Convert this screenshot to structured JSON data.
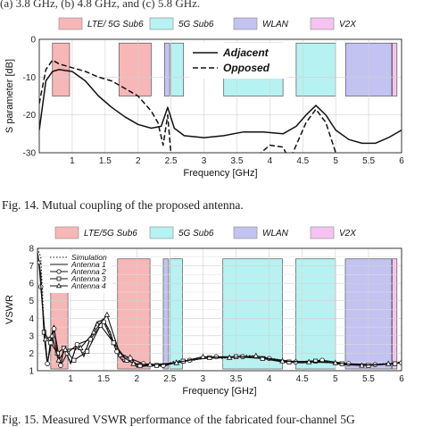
{
  "top_caption": "(a) 3.8 GHz, (b) 4.8 GHz, and (c) 5.8 GHz.",
  "bands": [
    {
      "label": "LTE/ 5G Sub6",
      "color": "#f7b7b7",
      "x_start": 0.7,
      "x_end": 0.96
    },
    {
      "label": "LTE/ 5G Sub6",
      "color": "#f7b7b7",
      "x_start": 1.71,
      "x_end": 2.2
    },
    {
      "label": "5G Sub6",
      "color": "#b7f2f2",
      "x_start": 2.5,
      "x_end": 2.69
    },
    {
      "label": "WLAN",
      "color": "#c3c3f2",
      "x_start": 2.4,
      "x_end": 2.48
    },
    {
      "label": "5G Sub6",
      "color": "#b7f2f2",
      "x_start": 3.3,
      "x_end": 4.2
    },
    {
      "label": "5G Sub6",
      "color": "#b7f2f2",
      "x_start": 4.4,
      "x_end": 5.0
    },
    {
      "label": "WLAN",
      "color": "#c3c3f2",
      "x_start": 5.15,
      "x_end": 5.85
    },
    {
      "label": "V2X",
      "color": "#f5c3f2",
      "x_start": 5.86,
      "x_end": 5.93
    }
  ],
  "legend_band_labels": [
    "LTE/ 5G Sub6",
    "5G Sub6",
    "WLAN",
    "V2X"
  ],
  "legend_band_labels_fig15": [
    "LTE/5G Sub6",
    "5G Sub6",
    "WLAN",
    "V2X"
  ],
  "legend_band_colors": [
    "#f7b7b7",
    "#b7f2f2",
    "#c3c3f2",
    "#f5c3f2"
  ],
  "fig14": {
    "caption": "Fig. 14.   Mutual coupling of the proposed antenna.",
    "chart_data": {
      "type": "line",
      "xlabel": "Frequency [GHz]",
      "ylabel": "S parameter [dB]",
      "xlim": [
        0.5,
        6
      ],
      "ylim": [
        -30,
        0
      ],
      "xticks": [
        "1",
        "1.5",
        "2",
        "2.5",
        "3",
        "3.5",
        "4",
        "4.5",
        "5",
        "5.5",
        "6"
      ],
      "yticks": [
        "0",
        "-10",
        "-20",
        "-30"
      ],
      "grid": true,
      "legend_position": "top-center",
      "series": [
        {
          "name": "Adjacent",
          "style": "solid",
          "x": [
            0.5,
            0.6,
            0.7,
            0.8,
            1.0,
            1.2,
            1.4,
            1.6,
            1.8,
            2.0,
            2.2,
            2.35,
            2.45,
            2.55,
            2.7,
            3.0,
            3.3,
            3.6,
            3.9,
            4.2,
            4.4,
            4.55,
            4.7,
            4.85,
            5.0,
            5.2,
            5.4,
            5.6,
            5.8,
            6.0
          ],
          "y": [
            -24,
            -11,
            -8.5,
            -8.0,
            -8.5,
            -11,
            -15,
            -18,
            -20.5,
            -22.5,
            -23.5,
            -23,
            -18,
            -23.5,
            -25.5,
            -26,
            -25.5,
            -24.5,
            -24.5,
            -25,
            -23,
            -20,
            -17.5,
            -20,
            -24,
            -26.5,
            -27.5,
            -27.5,
            -26,
            -24
          ]
        },
        {
          "name": "Opposed",
          "style": "dashed",
          "x": [
            0.5,
            0.6,
            0.7,
            0.8,
            1.0,
            1.2,
            1.4,
            1.6,
            1.8,
            2.0,
            2.2,
            2.3,
            2.38,
            2.45,
            2.5,
            2.55,
            3.8,
            4.0,
            4.2,
            4.3,
            4.4,
            4.55,
            4.7,
            4.85,
            5.0
          ],
          "y": [
            -17,
            -8,
            -5.5,
            -6.5,
            -7.5,
            -8.5,
            -10,
            -11,
            -13,
            -15,
            -19,
            -22,
            -28,
            -20,
            -30.5,
            -31,
            -31,
            -28,
            -28.5,
            -32,
            -28,
            -22,
            -18.5,
            -22,
            -30
          ]
        }
      ]
    }
  },
  "fig15": {
    "caption": "Fig. 15.   Measured VSWR performance of the fabricated four-channel 5G",
    "chart_data": {
      "type": "line",
      "xlabel": "Frequency [GHz]",
      "ylabel": "VSWR",
      "xlim": [
        0.5,
        6
      ],
      "ylim": [
        1,
        8
      ],
      "xticks": [
        "1",
        "1.5",
        "2",
        "2.5",
        "3",
        "3.5",
        "4",
        "4.5",
        "5",
        "5.5",
        "6"
      ],
      "yticks": [
        "8",
        "7",
        "6",
        "5",
        "4",
        "3",
        "2",
        "1"
      ],
      "grid": true,
      "legend_position": "top-left",
      "series": [
        {
          "name": "Simulation",
          "style": "dotted",
          "marker": "none",
          "x": [
            0.5,
            0.55,
            0.6,
            0.65,
            0.7,
            0.75,
            0.8,
            0.85,
            0.9,
            1.0,
            1.1,
            1.2,
            1.3,
            1.4,
            1.5,
            1.6,
            1.7,
            1.8,
            1.9,
            2.0,
            2.2,
            2.4,
            2.6,
            2.8,
            3.0,
            3.3,
            3.6,
            3.9,
            4.2,
            4.5,
            4.8,
            5.1,
            5.4,
            5.7,
            6.0
          ],
          "y": [
            8,
            7.5,
            3.5,
            1.5,
            2.5,
            3.5,
            2,
            1.4,
            2.2,
            1.5,
            2.4,
            2.0,
            2.8,
            3.7,
            4.0,
            3.0,
            2.2,
            1.6,
            1.9,
            1.3,
            1.4,
            1.3,
            1.6,
            1.5,
            1.8,
            1.7,
            1.9,
            1.8,
            1.6,
            1.5,
            1.6,
            1.4,
            1.3,
            1.4,
            1.5
          ]
        },
        {
          "name": "Antenna 1",
          "style": "solid",
          "marker": "none",
          "x": [
            0.5,
            0.55,
            0.6,
            0.65,
            0.7,
            0.75,
            0.8,
            0.85,
            0.9,
            1.0,
            1.1,
            1.2,
            1.3,
            1.4,
            1.5,
            1.6,
            1.7,
            1.8,
            1.9,
            2.0,
            2.2,
            2.4,
            2.6,
            2.8,
            3.0,
            3.3,
            3.6,
            3.9,
            4.2,
            4.5,
            4.8,
            5.1,
            5.4,
            5.7,
            6.0
          ],
          "y": [
            7.8,
            6.5,
            3.0,
            1.3,
            2.8,
            3.6,
            1.8,
            1.3,
            2.4,
            1.4,
            2.6,
            1.8,
            2.9,
            3.8,
            3.9,
            3.2,
            2.0,
            1.5,
            1.8,
            1.2,
            1.3,
            1.25,
            1.5,
            1.6,
            1.7,
            1.75,
            1.8,
            1.7,
            1.5,
            1.45,
            1.55,
            1.35,
            1.3,
            1.35,
            1.45
          ]
        },
        {
          "name": "Antenna 2",
          "style": "solid",
          "marker": "circle",
          "x": [
            0.55,
            0.65,
            0.75,
            0.85,
            0.95,
            1.1,
            1.3,
            1.5,
            1.7,
            1.9,
            2.1,
            2.4,
            2.8,
            3.2,
            3.6,
            4.0,
            4.4,
            4.8,
            5.2,
            5.6,
            6.0
          ],
          "y": [
            5.8,
            1.4,
            3.4,
            1.3,
            2.0,
            2.5,
            2.8,
            3.8,
            2.1,
            1.7,
            1.4,
            1.3,
            1.6,
            1.8,
            1.8,
            1.7,
            1.5,
            1.6,
            1.4,
            1.35,
            1.45
          ]
        },
        {
          "name": "Antenna 3",
          "style": "solid",
          "marker": "square",
          "x": [
            0.6,
            0.7,
            0.8,
            0.9,
            1.05,
            1.25,
            1.45,
            1.65,
            1.85,
            2.05,
            2.3,
            2.7,
            3.1,
            3.5,
            3.9,
            4.3,
            4.7,
            5.1,
            5.5,
            5.9
          ],
          "y": [
            3.2,
            2.6,
            2.0,
            2.3,
            1.6,
            2.1,
            3.6,
            2.6,
            1.6,
            1.3,
            1.3,
            1.55,
            1.75,
            1.8,
            1.7,
            1.5,
            1.55,
            1.4,
            1.3,
            1.4
          ]
        },
        {
          "name": "Antenna 4",
          "style": "solid",
          "marker": "triangle",
          "x": [
            0.52,
            0.62,
            0.72,
            0.82,
            0.92,
            1.15,
            1.35,
            1.55,
            1.75,
            1.95,
            2.2,
            2.6,
            3.0,
            3.4,
            3.8,
            4.2,
            4.6,
            5.0,
            5.4,
            5.8
          ],
          "y": [
            7.2,
            2.8,
            3.0,
            1.6,
            2.2,
            2.3,
            3.2,
            4.2,
            1.9,
            1.4,
            1.35,
            1.45,
            1.8,
            1.75,
            1.85,
            1.55,
            1.5,
            1.45,
            1.3,
            1.4
          ]
        }
      ]
    }
  }
}
